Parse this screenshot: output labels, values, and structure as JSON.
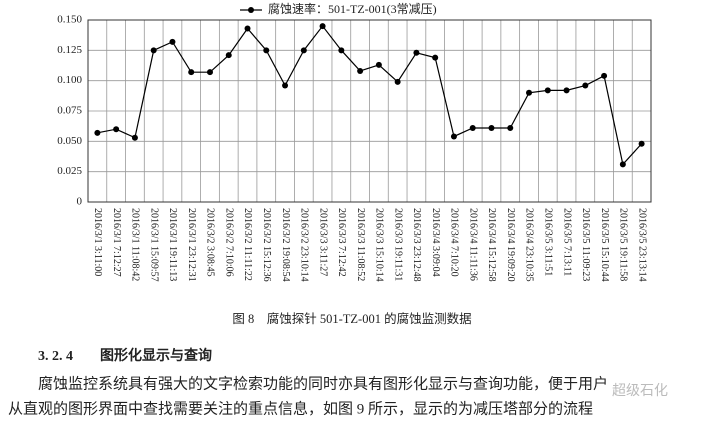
{
  "chart_data": {
    "type": "line",
    "legend": "腐蚀速率：501-TZ-001(3常减压)",
    "categories": [
      "2016/3/1 3:11:00",
      "2016/3/1 7:12:27",
      "2016/3/1 11:08:42",
      "2016/3/1 15:09:57",
      "2016/3/1 19:11:13",
      "2016/3/1 23:12:31",
      "2016/3/2 3:08:45",
      "2016/3/2 7:10:06",
      "2016/3/2 11:11:22",
      "2016/3/2 15:12:36",
      "2016/3/2 19:08:54",
      "2016/3/2 23:10:14",
      "2016/3/3 3:11:27",
      "2016/3/3 7:12:42",
      "2016/3/3 11:08:52",
      "2016/3/3 15:10:14",
      "2016/3/3 19:11:31",
      "2016/3/3 23:12:48",
      "2016/3/4 3:09:04",
      "2016/3/4 7:10:20",
      "2016/3/4 11:11:36",
      "2016/3/4 15:12:58",
      "2016/3/4 19:09:20",
      "2016/3/4 23:10:35",
      "2016/3/5 3:11:51",
      "2016/3/5 7:13:11",
      "2016/3/5 11:09:23",
      "2016/3/5 15:10:44",
      "2016/3/5 19:11:58",
      "2016/3/5 23:13:14"
    ],
    "values": [
      0.057,
      0.06,
      0.053,
      0.125,
      0.132,
      0.107,
      0.107,
      0.121,
      0.143,
      0.125,
      0.096,
      0.125,
      0.145,
      0.125,
      0.108,
      0.113,
      0.099,
      0.123,
      0.119,
      0.054,
      0.061,
      0.061,
      0.061,
      0.09,
      0.092,
      0.092,
      0.096,
      0.104,
      0.031,
      0.048
    ],
    "color": "#000000",
    "ylim": [
      0,
      0.15
    ],
    "yticks": [
      0,
      0.025,
      {
        "value": 0.05,
        "label": "0.050"
      },
      0.075,
      {
        "value": 0.1,
        "label": "0.100"
      },
      0.125,
      {
        "value": 0.15,
        "label": "0.150"
      }
    ],
    "grid": true
  },
  "caption": "图 8　腐蚀探针 501-TZ-001 的腐蚀监测数据",
  "section": {
    "number": "3. 2. 4",
    "title": "图形化显示与查询"
  },
  "paragraph": [
    "腐蚀监控系统具有强大的文字检索功能的同时亦具有图形化显示与查询功能，便于用户",
    "从直观的图形界面中查找需要关注的重点信息，如图 9 所示，显示的为减压塔部分的流程"
  ],
  "watermark": "超级石化"
}
